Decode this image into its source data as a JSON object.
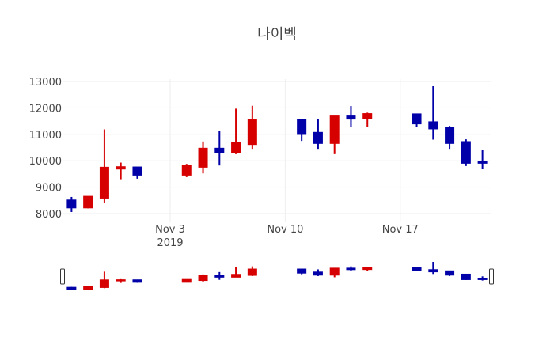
{
  "chart_data": {
    "type": "candlestick",
    "title": "나이벡",
    "increasing_color": "#d60000",
    "decreasing_color": "#0000a8",
    "xlim": [
      "2019-10-27T12:00",
      "2019-11-22T12:00"
    ],
    "ylim": [
      7700,
      13090
    ],
    "x_ticks": [
      {
        "date": "2019-11-03",
        "label": "Nov 3",
        "sublabel": "2019"
      },
      {
        "date": "2019-11-10",
        "label": "Nov 10",
        "sublabel": ""
      },
      {
        "date": "2019-11-17",
        "label": "Nov 17",
        "sublabel": ""
      }
    ],
    "y_ticks": [
      {
        "value": 8000,
        "label": "8000"
      },
      {
        "value": 9000,
        "label": "9000"
      },
      {
        "value": 10000,
        "label": "10000"
      },
      {
        "value": 11000,
        "label": "11000"
      },
      {
        "value": 12000,
        "label": "12000"
      },
      {
        "value": 13000,
        "label": "13000"
      }
    ],
    "grid": true,
    "rangeslider": true,
    "candles": [
      {
        "date": "2019-10-28",
        "open": 8500,
        "high": 8630,
        "low": 8060,
        "close": 8230
      },
      {
        "date": "2019-10-29",
        "open": 8230,
        "high": 8640,
        "low": 8200,
        "close": 8640
      },
      {
        "date": "2019-10-30",
        "open": 8600,
        "high": 11190,
        "low": 8420,
        "close": 9740
      },
      {
        "date": "2019-10-31",
        "open": 9700,
        "high": 9930,
        "low": 9300,
        "close": 9760
      },
      {
        "date": "2019-11-01",
        "open": 9750,
        "high": 9750,
        "low": 9320,
        "close": 9470
      },
      {
        "date": "2019-11-04",
        "open": 9470,
        "high": 9880,
        "low": 9380,
        "close": 9820
      },
      {
        "date": "2019-11-05",
        "open": 9770,
        "high": 10730,
        "low": 9520,
        "close": 10460
      },
      {
        "date": "2019-11-06",
        "open": 10460,
        "high": 11120,
        "low": 9820,
        "close": 10330
      },
      {
        "date": "2019-11-07",
        "open": 10330,
        "high": 11970,
        "low": 10250,
        "close": 10670
      },
      {
        "date": "2019-11-08",
        "open": 10630,
        "high": 12080,
        "low": 10450,
        "close": 11560
      },
      {
        "date": "2019-11-11",
        "open": 11560,
        "high": 11560,
        "low": 10750,
        "close": 11010
      },
      {
        "date": "2019-11-12",
        "open": 11060,
        "high": 11570,
        "low": 10450,
        "close": 10670
      },
      {
        "date": "2019-11-13",
        "open": 10670,
        "high": 11710,
        "low": 10250,
        "close": 11710
      },
      {
        "date": "2019-11-14",
        "open": 11710,
        "high": 12070,
        "low": 11290,
        "close": 11590
      },
      {
        "date": "2019-11-15",
        "open": 11610,
        "high": 11820,
        "low": 11290,
        "close": 11770
      },
      {
        "date": "2019-11-18",
        "open": 11760,
        "high": 11760,
        "low": 11290,
        "close": 11410
      },
      {
        "date": "2019-11-19",
        "open": 11460,
        "high": 12820,
        "low": 10800,
        "close": 11220
      },
      {
        "date": "2019-11-20",
        "open": 11260,
        "high": 11320,
        "low": 10450,
        "close": 10670
      },
      {
        "date": "2019-11-21",
        "open": 10710,
        "high": 10810,
        "low": 9800,
        "close": 9920
      },
      {
        "date": "2019-11-22",
        "open": 9960,
        "high": 10400,
        "low": 9700,
        "close": 9920
      }
    ]
  }
}
